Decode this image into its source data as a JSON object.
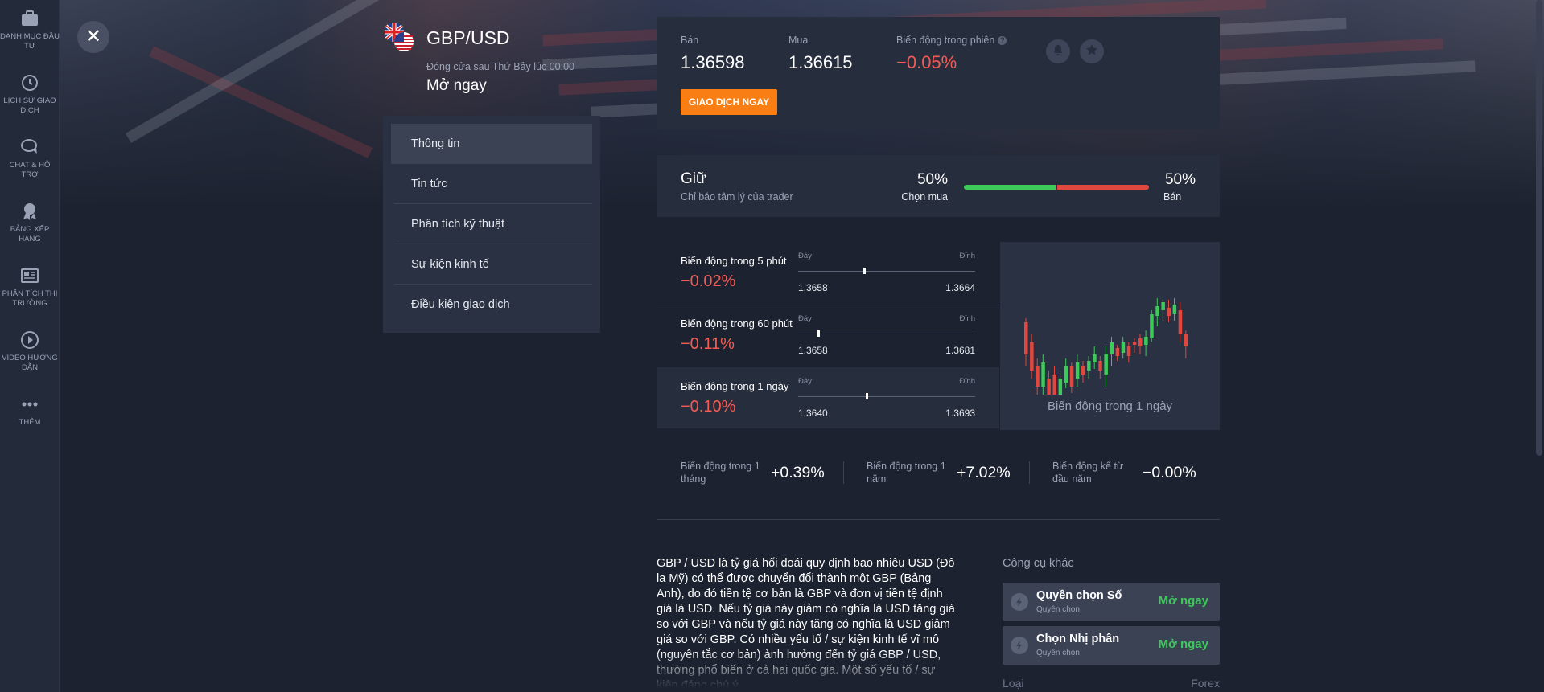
{
  "nav": [
    {
      "label": "DANH MỤC ĐẦU TƯ",
      "icon": "briefcase-icon"
    },
    {
      "label": "LỊCH SỬ GIAO DỊCH",
      "icon": "history-icon"
    },
    {
      "label": "CHAT & HỖ TRỢ",
      "icon": "chat-icon"
    },
    {
      "label": "BẢNG XẾP HẠNG",
      "icon": "award-icon"
    },
    {
      "label": "PHÂN TÍCH THỊ TRƯỜNG",
      "icon": "newspaper-icon"
    },
    {
      "label": "VIDEO HƯỚNG DẪN",
      "icon": "play-icon"
    },
    {
      "label": "THÊM",
      "icon": "more-icon"
    }
  ],
  "header": {
    "pair": "GBP/USD",
    "close_note": "Đóng cửa sau Thứ Bảy lúc 00:00",
    "status": "Mở ngay"
  },
  "menu": [
    "Thông tin",
    "Tin tức",
    "Phân tích kỹ thuật",
    "Sự kiện kinh tế",
    "Điều kiện giao dịch"
  ],
  "price": {
    "sell_label": "Bán",
    "sell": "1.36598",
    "buy_label": "Mua",
    "buy": "1.36615",
    "change_label": "Biến động trong phiên",
    "change": "−0.05%",
    "trade_button": "GIAO DỊCH NGAY",
    "info_glyph": "?"
  },
  "sentiment": {
    "title": "Giữ",
    "subtitle": "Chỉ báo tâm lý của trader",
    "buy_pct": "50%",
    "buy_label": "Chọn mua",
    "sell_pct": "50%",
    "sell_label": "Bán",
    "buy_fraction": 0.5
  },
  "ranges": [
    {
      "title": "Biến động trong 5 phút",
      "value": "−0.02%",
      "low_label": "Đáy",
      "high_label": "Đỉnh",
      "low": "1.3658",
      "high": "1.3664",
      "position": 0.37
    },
    {
      "title": "Biến động trong 60 phút",
      "value": "−0.11%",
      "low_label": "Đáy",
      "high_label": "Đỉnh",
      "low": "1.3658",
      "high": "1.3681",
      "position": 0.11
    },
    {
      "title": "Biến động trong 1 ngày",
      "value": "−0.10%",
      "low_label": "Đáy",
      "high_label": "Đỉnh",
      "low": "1.3640",
      "high": "1.3693",
      "position": 0.38
    }
  ],
  "chart_caption": "Biến động trong 1 ngày",
  "stats": [
    {
      "label": "Biến động trong 1 tháng",
      "value": "+0.39%"
    },
    {
      "label": "Biến động trong 1 năm",
      "value": "+7.02%"
    },
    {
      "label": "Biến động kể từ đầu năm",
      "value": "−0.00%"
    }
  ],
  "description": "GBP / USD là tỷ giá hối đoái quy định bao nhiêu USD (Đô la Mỹ) có thể được chuyển đổi thành một GBP (Bảng Anh), do đó tiền tệ cơ bản là GBP và đơn vị tiền tệ định giá là USD. Nếu tỷ giá này giảm có nghĩa là USD tăng giá so với GBP và nếu tỷ giá này tăng có nghĩa là USD giảm giá so với GBP. Có nhiều yếu tố / sự kiện kinh tế vĩ mô (nguyên tắc cơ bản) ảnh hưởng đến tỷ giá GBP / USD, thường phổ biến ở cả hai quốc gia. Một số yếu tố / sự kiện đáng chú ý",
  "other_tools": {
    "title": "Công cụ khác",
    "items": [
      {
        "name": "Quyền chọn Số",
        "sub": "Quyền chọn",
        "action": "Mở ngay"
      },
      {
        "name": "Chọn Nhị phân",
        "sub": "Quyền chọn",
        "action": "Mở ngay"
      }
    ],
    "type_label": "Loại",
    "type_value": "Forex"
  },
  "colors": {
    "accent": "#f97f14",
    "up": "#3ec95b",
    "down": "#f25c54",
    "bg": "#1c2230"
  }
}
